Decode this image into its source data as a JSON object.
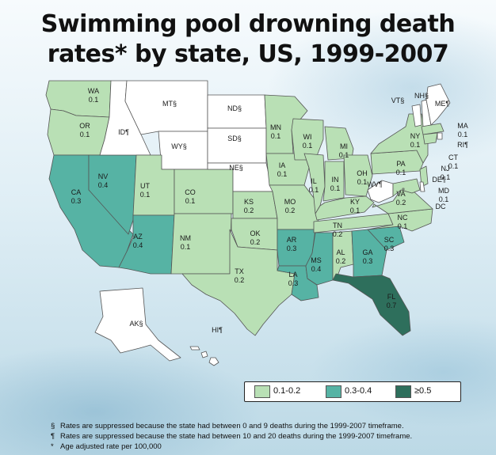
{
  "title": {
    "line1": "Swimming pool drowning death",
    "line2": "rates* by state, US, 1999-2007"
  },
  "colors": {
    "low": "#b9e0b5",
    "mid": "#56b3a4",
    "high": "#2e6f5c",
    "suppressed": "#ffffff",
    "border": "#555555"
  },
  "legend": {
    "items": [
      {
        "label": "0.1-0.2",
        "color": "#b9e0b5"
      },
      {
        "label": "0.3-0.4",
        "color": "#56b3a4"
      },
      {
        "label": "≥0.5",
        "color": "#2e6f5c"
      }
    ]
  },
  "states": [
    {
      "abbr": "WA",
      "value": "0.1",
      "category": "low"
    },
    {
      "abbr": "OR",
      "value": "0.1",
      "category": "low"
    },
    {
      "abbr": "CA",
      "value": "0.3",
      "category": "mid"
    },
    {
      "abbr": "NV",
      "value": "0.4",
      "category": "mid"
    },
    {
      "abbr": "ID",
      "mark": "¶",
      "category": "suppressed"
    },
    {
      "abbr": "MT",
      "mark": "§",
      "category": "suppressed"
    },
    {
      "abbr": "WY",
      "mark": "§",
      "category": "suppressed"
    },
    {
      "abbr": "UT",
      "value": "0.1",
      "category": "low"
    },
    {
      "abbr": "CO",
      "value": "0.1",
      "category": "low"
    },
    {
      "abbr": "AZ",
      "value": "0.4",
      "category": "mid"
    },
    {
      "abbr": "NM",
      "value": "0.1",
      "category": "low"
    },
    {
      "abbr": "ND",
      "mark": "§",
      "category": "suppressed"
    },
    {
      "abbr": "SD",
      "mark": "§",
      "category": "suppressed"
    },
    {
      "abbr": "NE",
      "mark": "§",
      "category": "suppressed"
    },
    {
      "abbr": "KS",
      "value": "0.2",
      "category": "low"
    },
    {
      "abbr": "OK",
      "value": "0.2",
      "category": "low"
    },
    {
      "abbr": "TX",
      "value": "0.2",
      "category": "low"
    },
    {
      "abbr": "MN",
      "value": "0.1",
      "category": "low"
    },
    {
      "abbr": "IA",
      "value": "0.1",
      "category": "low"
    },
    {
      "abbr": "MO",
      "value": "0.2",
      "category": "low"
    },
    {
      "abbr": "AR",
      "value": "0.3",
      "category": "mid"
    },
    {
      "abbr": "LA",
      "value": "0.3",
      "category": "mid"
    },
    {
      "abbr": "WI",
      "value": "0.1",
      "category": "low"
    },
    {
      "abbr": "IL",
      "value": "0.1",
      "category": "low"
    },
    {
      "abbr": "MI",
      "value": "0.1",
      "category": "low"
    },
    {
      "abbr": "IN",
      "value": "0.1",
      "category": "low"
    },
    {
      "abbr": "OH",
      "value": "0.1",
      "category": "low"
    },
    {
      "abbr": "KY",
      "value": "0.1",
      "category": "low"
    },
    {
      "abbr": "TN",
      "value": "0.2",
      "category": "low"
    },
    {
      "abbr": "MS",
      "value": "0.4",
      "category": "mid"
    },
    {
      "abbr": "AL",
      "value": "0.2",
      "category": "low"
    },
    {
      "abbr": "GA",
      "value": "0.3",
      "category": "mid"
    },
    {
      "abbr": "FL",
      "value": "0.7",
      "category": "high"
    },
    {
      "abbr": "SC",
      "value": "0.3",
      "category": "mid"
    },
    {
      "abbr": "NC",
      "value": "0.1",
      "category": "low"
    },
    {
      "abbr": "VA",
      "value": "0.2",
      "category": "low"
    },
    {
      "abbr": "WV",
      "mark": "¶",
      "category": "suppressed"
    },
    {
      "abbr": "PA",
      "value": "0.1",
      "category": "low"
    },
    {
      "abbr": "NY",
      "value": "0.1",
      "category": "low"
    },
    {
      "abbr": "VT",
      "mark": "§",
      "category": "suppressed"
    },
    {
      "abbr": "NH",
      "mark": "§",
      "category": "suppressed"
    },
    {
      "abbr": "ME",
      "mark": "¶",
      "category": "suppressed"
    },
    {
      "abbr": "MA",
      "value": "0.1",
      "category": "low"
    },
    {
      "abbr": "RI",
      "mark": "¶",
      "category": "suppressed"
    },
    {
      "abbr": "CT",
      "value": "0.1",
      "category": "low"
    },
    {
      "abbr": "NJ",
      "value": "0.1",
      "category": "low"
    },
    {
      "abbr": "DE",
      "mark": "¶",
      "category": "suppressed"
    },
    {
      "abbr": "MD",
      "value": "0.1",
      "category": "low"
    },
    {
      "abbr": "DC",
      "category": "low"
    },
    {
      "abbr": "AK",
      "mark": "§",
      "category": "suppressed"
    },
    {
      "abbr": "HI",
      "mark": "¶",
      "category": "suppressed"
    }
  ],
  "footnotes": [
    {
      "mark": "§",
      "text": "Rates are suppressed because the state had between 0 and 9 deaths during the 1999-2007 timeframe."
    },
    {
      "mark": "¶",
      "text": "Rates are suppressed because the state had between 10 and 20 deaths during the 1999-2007 timeframe."
    },
    {
      "mark": "*",
      "text": "Age adjusted rate per 100,000"
    }
  ]
}
